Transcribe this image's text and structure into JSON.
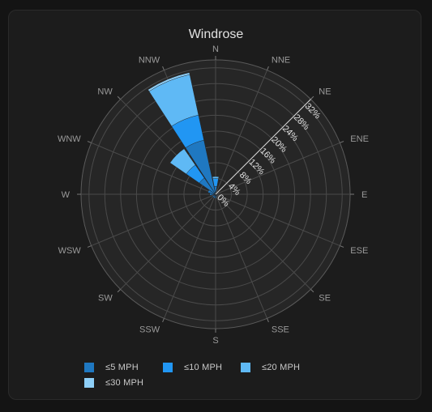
{
  "chart_data": {
    "type": "windrose",
    "title": "Windrose",
    "directions": [
      "N",
      "NNE",
      "NE",
      "ENE",
      "E",
      "ESE",
      "SE",
      "SSE",
      "S",
      "SSW",
      "SW",
      "WSW",
      "W",
      "WNW",
      "NW",
      "NNW"
    ],
    "radial_ticks": [
      "0%",
      "4%",
      "8%",
      "12%",
      "16%",
      "20%",
      "24%",
      "28%",
      "32%"
    ],
    "rmax": 34,
    "grid": true,
    "legend_position": "bottom",
    "series": [
      {
        "name": "≤5 MPH",
        "color": "#1f78c1",
        "values": [
          2,
          0.5,
          0.3,
          0.3,
          0.5,
          0.3,
          0.5,
          0.5,
          1,
          1,
          1,
          0.5,
          1.5,
          2,
          5,
          14
        ]
      },
      {
        "name": "≤10 MPH",
        "color": "#2196f3",
        "values": [
          4,
          0,
          0,
          0,
          0,
          0,
          0,
          0,
          0,
          0,
          0,
          0,
          0,
          0,
          9,
          20.5
        ]
      },
      {
        "name": "≤20 MPH",
        "color": "#5fb9f5",
        "values": [
          4.5,
          0,
          0,
          0,
          0,
          0,
          0,
          0,
          0,
          0,
          0,
          0,
          0,
          0,
          14,
          31
        ]
      },
      {
        "name": "≤30 MPH",
        "color": "#8ecff8",
        "values": [
          4.5,
          0,
          0,
          0,
          0,
          0,
          0,
          0,
          0,
          0,
          0,
          0,
          0,
          0,
          14,
          31.5
        ]
      }
    ]
  }
}
